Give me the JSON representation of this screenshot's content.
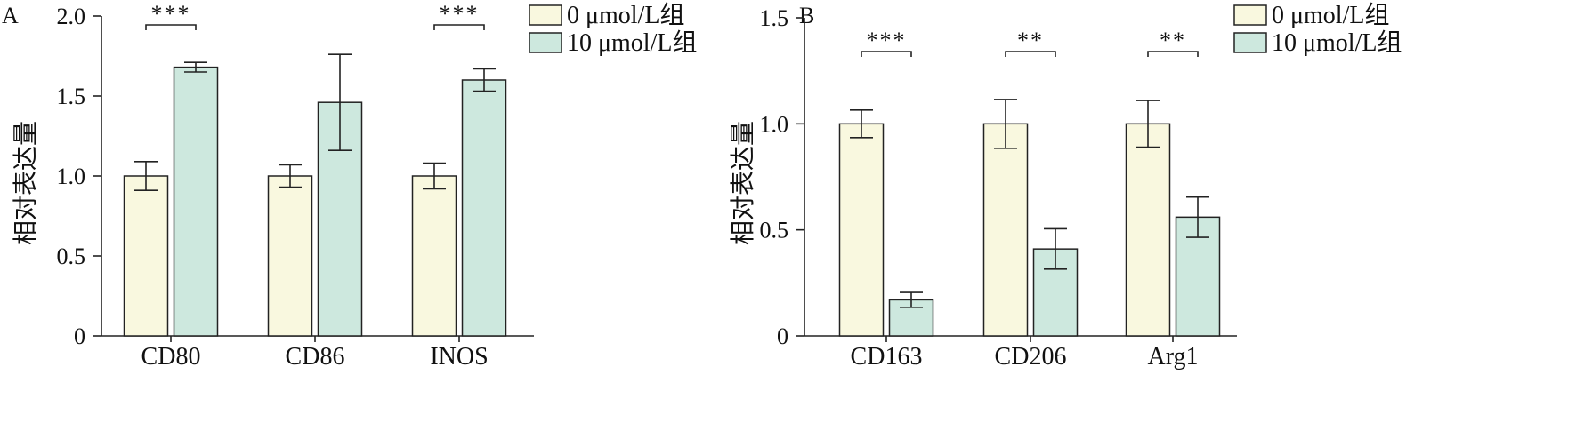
{
  "chart_data": [
    {
      "panel": "A",
      "type": "bar",
      "categories": [
        "CD80",
        "CD86",
        "INOS"
      ],
      "ylabel": "相对表达量",
      "ylim": [
        0,
        2.0
      ],
      "yticks": [
        "0",
        "0.5",
        "1.0",
        "1.5",
        "2.0"
      ],
      "series": [
        {
          "name": "0 μmol/L组",
          "color": "#f9f8df",
          "values": [
            1.0,
            1.0,
            1.0
          ],
          "errors": [
            0.09,
            0.07,
            0.08
          ]
        },
        {
          "name": "10 μmol/L组",
          "color": "#cde8de",
          "values": [
            1.68,
            1.46,
            1.6
          ],
          "errors": [
            0.03,
            0.3,
            0.07
          ]
        }
      ],
      "significance": [
        "***",
        "",
        "***"
      ]
    },
    {
      "panel": "B",
      "type": "bar",
      "categories": [
        "CD163",
        "CD206",
        "Arg1"
      ],
      "ylabel": "相对表达量",
      "ylim": [
        0,
        1.5
      ],
      "yticks": [
        "0",
        "0.5",
        "1.0",
        "1.5"
      ],
      "series": [
        {
          "name": "0 μmol/L组",
          "color": "#f9f8df",
          "values": [
            1.0,
            1.0,
            1.0
          ],
          "errors": [
            0.065,
            0.115,
            0.11
          ]
        },
        {
          "name": "10 μmol/L组",
          "color": "#cde8de",
          "values": [
            0.17,
            0.41,
            0.56
          ],
          "errors": [
            0.035,
            0.095,
            0.095
          ]
        }
      ],
      "significance": [
        "***",
        "**",
        "**"
      ]
    }
  ]
}
